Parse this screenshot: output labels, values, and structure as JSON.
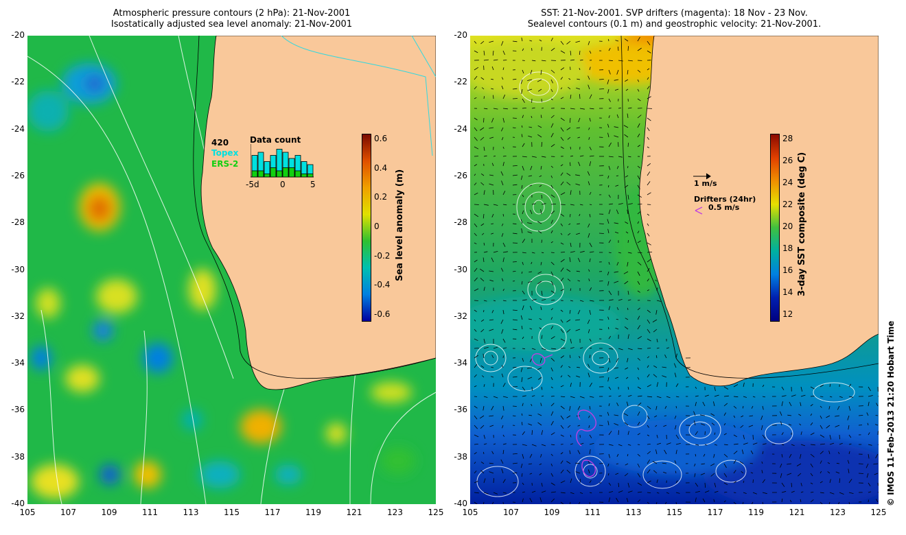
{
  "left_panel": {
    "title_line1": "Atmospheric pressure contours (2 hPa): 21-Nov-2001",
    "title_line2": "Isostatically adjusted sea level anomaly: 21-Nov-2001",
    "colorbar_title": "Sea level anomaly (m)",
    "colorbar_ticks": [
      "0.6",
      "0.4",
      "0.2",
      "0",
      "-0.2",
      "-0.4",
      "-0.6"
    ],
    "colorbar_colors": [
      "#7a0a00",
      "#e05000",
      "#f0a000",
      "#e0e000",
      "#30c030",
      "#00c0b0",
      "#0080e0",
      "#0000a0"
    ],
    "inset": {
      "count": "420",
      "satellite1": "Topex",
      "satellite1_color": "#00e0e0",
      "satellite2": "ERS-2",
      "satellite2_color": "#10d010",
      "title": "Data count",
      "xticks": [
        "-5d",
        "0",
        "5"
      ],
      "topex_counts": [
        7,
        8,
        5,
        7,
        9,
        8,
        6,
        7,
        5,
        4
      ],
      "ers2_counts": [
        2,
        2,
        1,
        3,
        2,
        3,
        3,
        2,
        1,
        1
      ]
    }
  },
  "right_panel": {
    "title_line1": "SST: 21-Nov-2001. SVP drifters (magenta): 18 Nov - 23 Nov.",
    "title_line2": "Sealevel contours (0.1 m) and geostrophic velocity: 21-Nov-2001.",
    "colorbar_title": "3-day SST composite (deg C)",
    "colorbar_ticks": [
      "28",
      "26",
      "24",
      "22",
      "20",
      "18",
      "16",
      "14",
      "12"
    ],
    "colorbar_colors": [
      "#8a0a00",
      "#e04000",
      "#f09000",
      "#e8e000",
      "#40c040",
      "#00b0a0",
      "#0080e0",
      "#0020b0",
      "#000080"
    ],
    "velocity_legend": "1 m/s",
    "drifter_legend_title": "Drifters (24hr)",
    "drifter_legend_value": "0.5 m/s",
    "drifter_color": "#c040e0"
  },
  "axes": {
    "lat_ticks": [
      "-20",
      "-22",
      "-24",
      "-26",
      "-28",
      "-30",
      "-32",
      "-34",
      "-36",
      "-38",
      "-40"
    ],
    "lon_ticks": [
      "105",
      "107",
      "109",
      "111",
      "113",
      "115",
      "117",
      "119",
      "121",
      "123",
      "125"
    ]
  },
  "land_color": "#f9c89a",
  "credit": "© IMOS 11-Feb-2013 21:20 Hobart Time"
}
